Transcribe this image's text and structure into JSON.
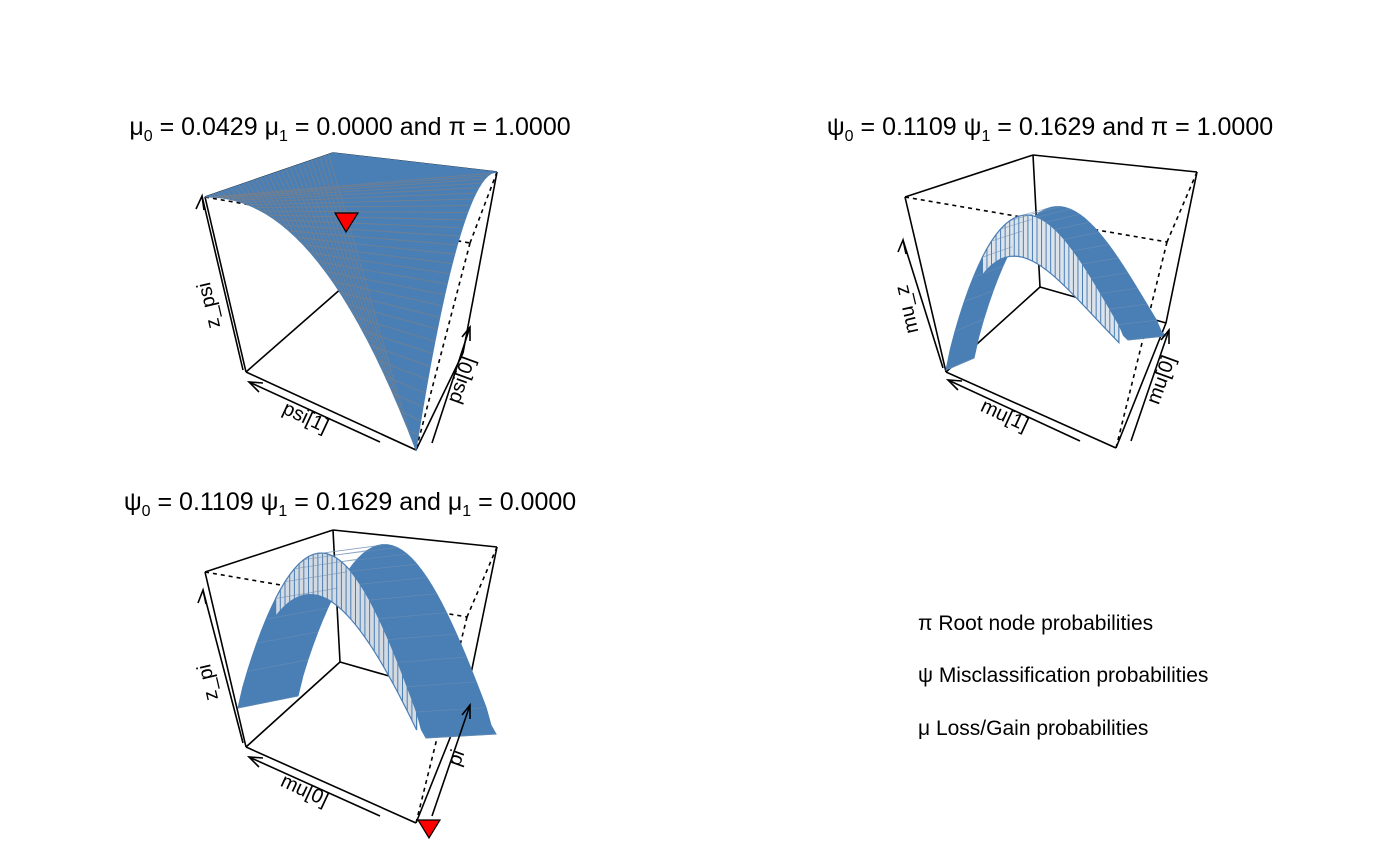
{
  "chart_data": [
    {
      "type": "surface3d",
      "title_parts": [
        {
          "sym": "μ",
          "sub": "0",
          "text": " = 0.0429 "
        },
        {
          "sym": "μ",
          "sub": "1",
          "text": " = 0.0000 and "
        },
        {
          "sym": "π",
          "sub": "",
          "text": " = 1.0000"
        }
      ],
      "xlabel": "psi[1]",
      "ylabel": "psi[0]",
      "zlabel": "z_psi",
      "surface": "monotone",
      "marker": "red-triangle",
      "colors": {
        "surface": "#4a7fb5",
        "mesh": "#7a7f88",
        "underside": "#d2d8e0",
        "marker": "#ff0000"
      }
    },
    {
      "type": "surface3d",
      "title_parts": [
        {
          "sym": "ψ",
          "sub": "0",
          "text": " = 0.1109 "
        },
        {
          "sym": "ψ",
          "sub": "1",
          "text": " = 0.1629 and "
        },
        {
          "sym": "π",
          "sub": "",
          "text": " = 1.0000"
        }
      ],
      "xlabel": "mu[1]",
      "ylabel": "mu[0]",
      "zlabel": "mu_z",
      "surface": "ridge",
      "colors": {
        "surface": "#4a7fb5",
        "mesh": "#4a7fb5",
        "underside": "#dde3ea"
      }
    },
    {
      "type": "surface3d",
      "title_parts": [
        {
          "sym": "ψ",
          "sub": "0",
          "text": " = 0.1109 "
        },
        {
          "sym": "ψ",
          "sub": "1",
          "text": " = 0.1629 and "
        },
        {
          "sym": "μ",
          "sub": "1",
          "text": " = 0.0000"
        }
      ],
      "xlabel": "mu[0]",
      "ylabel": "pi",
      "zlabel": "z_pi",
      "surface": "arch",
      "marker": "red-triangle",
      "colors": {
        "surface": "#4a7fb5",
        "mesh": "#4a7fb5",
        "underside": "#d4dae2",
        "marker": "#ff0000"
      }
    }
  ],
  "legend": [
    {
      "sym": "π",
      "text": " Root node probabilities"
    },
    {
      "sym": "ψ",
      "text": " Misclassification probabilities"
    },
    {
      "sym": "μ",
      "text": " Loss/Gain probabilities"
    }
  ]
}
